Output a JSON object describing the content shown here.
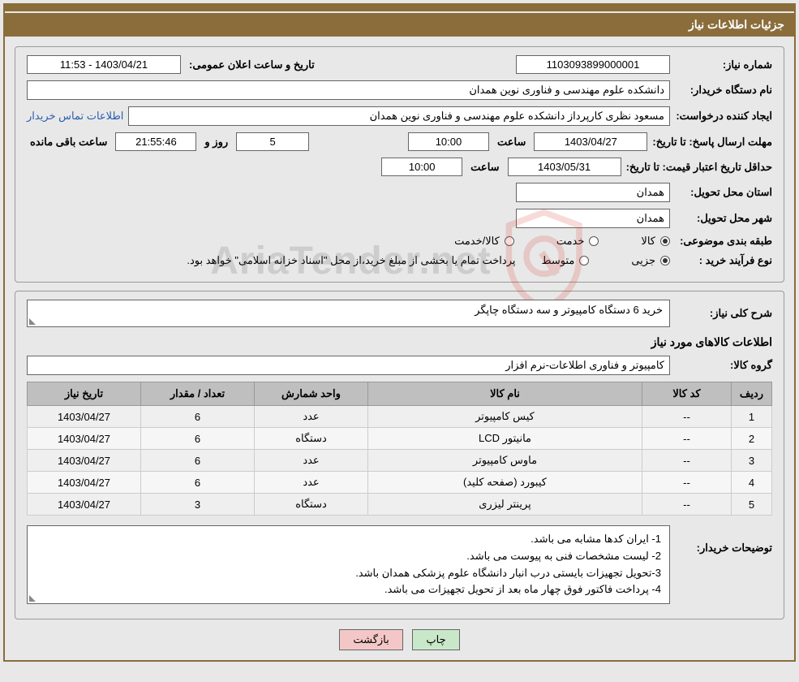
{
  "header": {
    "title": "جزئیات اطلاعات نیاز"
  },
  "row1": {
    "need_no_label": "شماره نیاز:",
    "need_no": "1103093899000001",
    "announce_label": "تاریخ و ساعت اعلان عمومی:",
    "announce_value": "1403/04/21 - 11:53"
  },
  "row2": {
    "buyer_label": "نام دستگاه خریدار:",
    "buyer_value": "دانشکده علوم مهندسی و فناوری نوین همدان"
  },
  "row3": {
    "requester_label": "ایجاد کننده درخواست:",
    "requester_value": "مسعود نظری کارپرداز دانشکده علوم مهندسی و فناوری نوین همدان",
    "contact_link": "اطلاعات تماس خریدار"
  },
  "row4": {
    "deadline_label": "مهلت ارسال پاسخ: تا تاریخ:",
    "deadline_date": "1403/04/27",
    "time_label": "ساعت",
    "deadline_time": "10:00",
    "days": "5",
    "days_label": "روز و",
    "remaining_time": "21:55:46",
    "remaining_label": "ساعت باقی مانده"
  },
  "row5": {
    "valid_label": "حداقل تاریخ اعتبار قیمت: تا تاریخ:",
    "valid_date": "1403/05/31",
    "valid_time": "10:00"
  },
  "row6": {
    "province_label": "استان محل تحویل:",
    "province_value": "همدان"
  },
  "row7": {
    "city_label": "شهر محل تحویل:",
    "city_value": "همدان"
  },
  "row8": {
    "category_label": "طبقه بندی موضوعی:",
    "opt_goods": "کالا",
    "opt_service": "خدمت",
    "opt_goods_service": "کالا/خدمت"
  },
  "row9": {
    "process_label": "نوع فرآیند خرید :",
    "opt_partial": "جزیی",
    "opt_medium": "متوسط",
    "process_note": "پرداخت تمام یا بخشی از مبلغ خرید،از محل \"اسناد خزانه اسلامی\" خواهد بود."
  },
  "section2": {
    "summary_label": "شرح کلی نیاز:",
    "summary_value": "خرید 6 دستگاه کامپیوتر و سه دستگاه چاپگر",
    "goods_info_title": "اطلاعات کالاهای مورد نیاز",
    "group_label": "گروه کالا:",
    "group_value": "کامپیوتر و فناوری اطلاعات-نرم افزار"
  },
  "table": {
    "headers": {
      "row": "ردیف",
      "code": "کد کالا",
      "name": "نام کالا",
      "unit": "واحد شمارش",
      "qty": "تعداد / مقدار",
      "date": "تاریخ نیاز"
    },
    "rows": [
      {
        "n": "1",
        "code": "--",
        "name": "کیس کامپیوتر",
        "unit": "عدد",
        "qty": "6",
        "date": "1403/04/27"
      },
      {
        "n": "2",
        "code": "--",
        "name": "مانیتور LCD",
        "unit": "دستگاه",
        "qty": "6",
        "date": "1403/04/27"
      },
      {
        "n": "3",
        "code": "--",
        "name": "ماوس کامپیوتر",
        "unit": "عدد",
        "qty": "6",
        "date": "1403/04/27"
      },
      {
        "n": "4",
        "code": "--",
        "name": "کیبورد (صفحه کلید)",
        "unit": "عدد",
        "qty": "6",
        "date": "1403/04/27"
      },
      {
        "n": "5",
        "code": "--",
        "name": "پرینتر لیزری",
        "unit": "دستگاه",
        "qty": "3",
        "date": "1403/04/27"
      }
    ],
    "col_widths": {
      "row": "50px",
      "code": "110px",
      "name": "auto",
      "unit": "140px",
      "qty": "140px",
      "date": "140px"
    }
  },
  "notes": {
    "label": "توضیحات خریدار:",
    "lines": [
      "1- ایران کدها مشابه می باشد.",
      "2- لیست مشخصات فنی به پیوست می باشد.",
      "3-تحویل تجهیزات بایستی درب انبار دانشگاه علوم پزشکی همدان باشد.",
      "4- پرداخت فاکتور فوق چهار ماه بعد از تحویل تجهیزات می باشد."
    ]
  },
  "buttons": {
    "print": "چاپ",
    "back": "بازگشت"
  },
  "watermark": {
    "text": "AriaTender.net"
  },
  "colors": {
    "brown": "#8a6d3b",
    "bg": "#e8e8e8",
    "th_bg": "#bfbfbf",
    "link": "#2a5db0",
    "btn_print": "#c9e8c9",
    "btn_back": "#f4c7c7",
    "shield_red": "#d9362f"
  }
}
